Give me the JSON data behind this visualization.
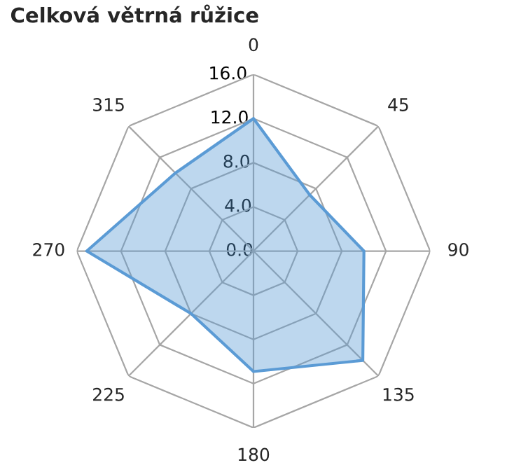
{
  "chart_data": {
    "type": "radar",
    "title": "Celková větrná růžice",
    "categories": [
      "0",
      "45",
      "90",
      "135",
      "180",
      "225",
      "270",
      "315"
    ],
    "series": [
      {
        "color": "#5b9bd5",
        "values": [
          12.0,
          7.2,
          10.0,
          14.0,
          10.9,
          8.0,
          15.1,
          10.0
        ]
      }
    ],
    "ylim": [
      0,
      16
    ],
    "yticks": [
      {
        "value": 0,
        "label": "0.0"
      },
      {
        "value": 4,
        "label": "4.0"
      },
      {
        "value": 8,
        "label": "8.0"
      },
      {
        "value": 12,
        "label": "12.0"
      },
      {
        "value": 16,
        "label": "16.0"
      }
    ],
    "grid": true
  }
}
